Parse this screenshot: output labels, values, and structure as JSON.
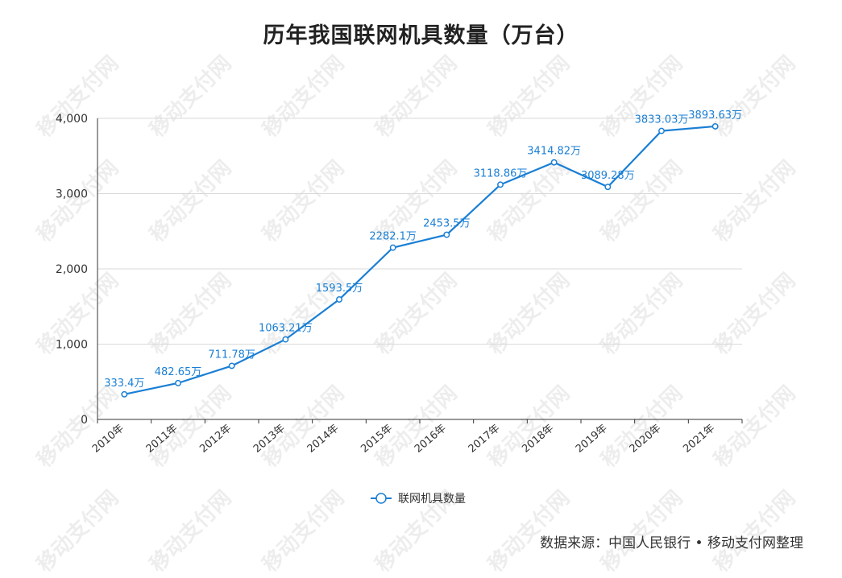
{
  "title": "历年我国联网机具数量（万台）",
  "source": "数据来源：中国人民银行 • 移动支付网整理",
  "watermark": "移动支付网",
  "colors": {
    "series": "#1a7fd4",
    "grid": "#d9d9d9",
    "axis": "#333333"
  },
  "chart_data": {
    "type": "line",
    "title": "历年我国联网机具数量（万台）",
    "x": [
      "2010年",
      "2011年",
      "2012年",
      "2013年",
      "2014年",
      "2015年",
      "2016年",
      "2017年",
      "2018年",
      "2019年",
      "2020年",
      "2021年"
    ],
    "series": [
      {
        "name": "联网机具数量",
        "values": [
          333.4,
          482.65,
          711.78,
          1063.21,
          1593.5,
          2282.1,
          2453.5,
          3118.86,
          3414.82,
          3089.28,
          3833.03,
          3893.63
        ],
        "labels": [
          "333.4万",
          "482.65万",
          "711.78万",
          "1063.21万",
          "1593.5万",
          "2282.1万",
          "2453.5万",
          "3118.86万",
          "3414.82万",
          "3089.28万",
          "3833.03万",
          "3893.63万"
        ]
      }
    ],
    "ylim": [
      0,
      4000
    ],
    "yticks": [
      0,
      1000,
      2000,
      3000,
      4000
    ],
    "ytick_labels": [
      "0",
      "1,000",
      "2,000",
      "3,000",
      "4,000"
    ],
    "grid": true,
    "legend": "bottom-center"
  }
}
